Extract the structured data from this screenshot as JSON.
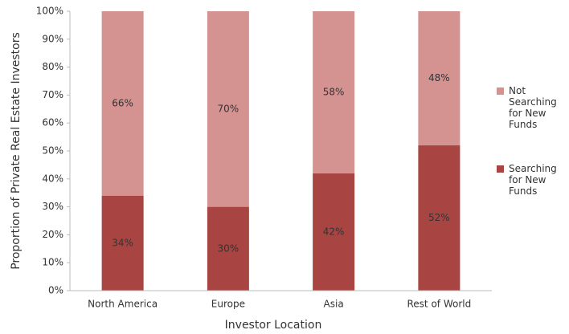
{
  "chart_data": {
    "type": "stacked_bar",
    "categories": [
      "North America",
      "Europe",
      "Asia",
      "Rest of World"
    ],
    "series": [
      {
        "name": "Searching for New Funds",
        "color": "#a84442",
        "values": [
          34,
          30,
          42,
          52
        ],
        "value_labels": [
          "34%",
          "30%",
          "42%",
          "52%"
        ]
      },
      {
        "name": "Not Searching for New Funds",
        "color": "#d49391",
        "values": [
          66,
          70,
          58,
          48
        ],
        "value_labels": [
          "66%",
          "70%",
          "58%",
          "48%"
        ]
      }
    ],
    "x_label": "Investor Location",
    "y_label": "Proportion of Private Real Estate Investors",
    "ylim": [
      0,
      100
    ],
    "yticks": [
      {
        "value": 0,
        "label": "0%"
      },
      {
        "value": 10,
        "label": "10%"
      },
      {
        "value": 20,
        "label": "20%"
      },
      {
        "value": 30,
        "label": "30%"
      },
      {
        "value": 40,
        "label": "40%"
      },
      {
        "value": 50,
        "label": "50%"
      },
      {
        "value": 60,
        "label": "60%"
      },
      {
        "value": 70,
        "label": "70%"
      },
      {
        "value": 80,
        "label": "80%"
      },
      {
        "value": 90,
        "label": "90%"
      },
      {
        "value": 100,
        "label": "100%"
      }
    ],
    "grid": false,
    "legend": "right"
  }
}
